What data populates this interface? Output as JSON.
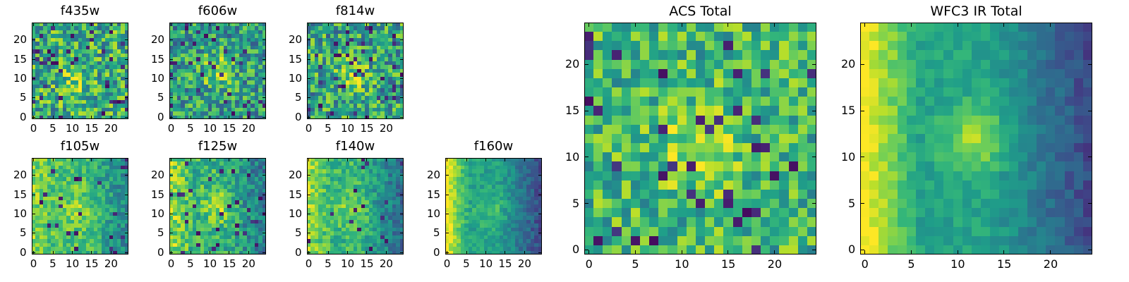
{
  "chart_data": [
    {
      "type": "heatmap",
      "title": "f435w",
      "x_ticks": [
        "0",
        "5",
        "10",
        "15",
        "20"
      ],
      "y_ticks": [
        "0",
        "5",
        "10",
        "15",
        "20"
      ],
      "xlim": [
        0,
        25
      ],
      "ylim": [
        0,
        25
      ],
      "colormap": "viridis"
    },
    {
      "type": "heatmap",
      "title": "f606w",
      "x_ticks": [
        "0",
        "5",
        "10",
        "15",
        "20"
      ],
      "y_ticks": [
        "0",
        "5",
        "10",
        "15",
        "20"
      ],
      "xlim": [
        0,
        25
      ],
      "ylim": [
        0,
        25
      ],
      "colormap": "viridis"
    },
    {
      "type": "heatmap",
      "title": "f814w",
      "x_ticks": [
        "0",
        "5",
        "10",
        "15",
        "20"
      ],
      "y_ticks": [
        "0",
        "5",
        "10",
        "15",
        "20"
      ],
      "xlim": [
        0,
        25
      ],
      "ylim": [
        0,
        25
      ],
      "colormap": "viridis"
    },
    {
      "type": "heatmap",
      "title": "f105w",
      "x_ticks": [
        "0",
        "5",
        "10",
        "15",
        "20"
      ],
      "y_ticks": [
        "0",
        "5",
        "10",
        "15",
        "20"
      ],
      "xlim": [
        0,
        25
      ],
      "ylim": [
        0,
        25
      ],
      "colormap": "viridis"
    },
    {
      "type": "heatmap",
      "title": "f125w",
      "x_ticks": [
        "0",
        "5",
        "10",
        "15",
        "20"
      ],
      "y_ticks": [
        "0",
        "5",
        "10",
        "15",
        "20"
      ],
      "xlim": [
        0,
        25
      ],
      "ylim": [
        0,
        25
      ],
      "colormap": "viridis"
    },
    {
      "type": "heatmap",
      "title": "f140w",
      "x_ticks": [
        "0",
        "5",
        "10",
        "15",
        "20"
      ],
      "y_ticks": [
        "0",
        "5",
        "10",
        "15",
        "20"
      ],
      "xlim": [
        0,
        25
      ],
      "ylim": [
        0,
        25
      ],
      "colormap": "viridis"
    },
    {
      "type": "heatmap",
      "title": "f160w",
      "x_ticks": [
        "0",
        "5",
        "10",
        "15",
        "20"
      ],
      "y_ticks": [
        "0",
        "5",
        "10",
        "15",
        "20"
      ],
      "xlim": [
        0,
        25
      ],
      "ylim": [
        0,
        25
      ],
      "colormap": "viridis"
    },
    {
      "type": "heatmap",
      "title": "ACS Total",
      "x_ticks": [
        "0",
        "5",
        "10",
        "15",
        "20"
      ],
      "y_ticks": [
        "0",
        "5",
        "10",
        "15",
        "20"
      ],
      "xlim": [
        0,
        25
      ],
      "ylim": [
        0,
        25
      ],
      "colormap": "viridis"
    },
    {
      "type": "heatmap",
      "title": "WFC3 IR Total",
      "x_ticks": [
        "0",
        "5",
        "10",
        "15",
        "20"
      ],
      "y_ticks": [
        "0",
        "5",
        "10",
        "15",
        "20"
      ],
      "xlim": [
        0,
        25
      ],
      "ylim": [
        0,
        25
      ],
      "colormap": "viridis"
    }
  ]
}
